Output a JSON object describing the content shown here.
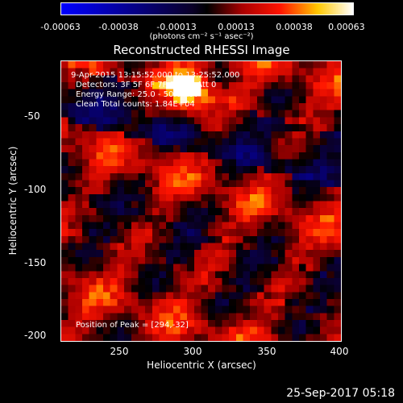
{
  "colorbar": {
    "ticks": [
      "-0.00063",
      "-0.00038",
      "-0.00013",
      "0.00013",
      "0.00038",
      "0.00063"
    ],
    "unit": "(photons cm⁻² s⁻¹ asec⁻²)",
    "min": -0.00063,
    "max": 0.00063
  },
  "title": "Reconstructed RHESSI Image",
  "overlay": {
    "line1": "9-Apr-2015 13:15:52.000 to 13:25:52.000",
    "line2": "Detectors: 3F 5F 6F 7F 8F 9F, Att 0",
    "line3": "Energy Range: 25.0 - 50.0 keV",
    "line4": "Clean    Total counts: 1.84E+04",
    "peak": "Position of Peak = [294,-32]"
  },
  "axes": {
    "xlabel": "Heliocentric X (arcsec)",
    "ylabel": "Heliocentric Y (arcsec)",
    "xticks": [
      "250",
      "300",
      "350",
      "400"
    ],
    "yticks": [
      "-50",
      "-100",
      "-150",
      "-200"
    ],
    "xlim": [
      210,
      400
    ],
    "ylim": [
      -205,
      -15
    ]
  },
  "timestamp": "25-Sep-2017 05:18",
  "chart_data": {
    "type": "heatmap",
    "title": "Reconstructed RHESSI Image",
    "xlabel": "Heliocentric X (arcsec)",
    "ylabel": "Heliocentric Y (arcsec)",
    "xlim": [
      210,
      400
    ],
    "ylim": [
      -205,
      -15
    ],
    "peak": [
      294,
      -32
    ],
    "colormap": [
      "#0000ff",
      "#000000",
      "#ff0000",
      "#ffff00",
      "#ffffff"
    ]
  }
}
